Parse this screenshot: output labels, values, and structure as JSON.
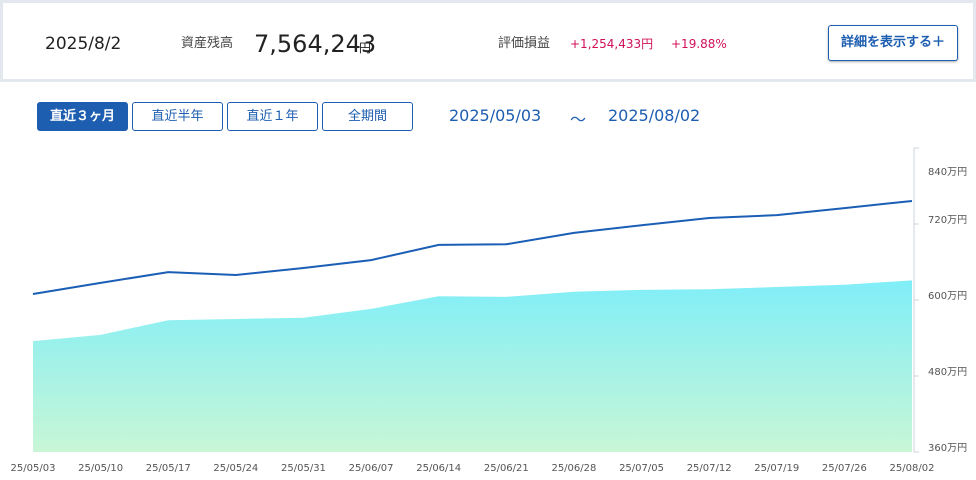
{
  "header": {
    "date": "2025/8/2",
    "balance_label": "資産残高",
    "balance": "7,564,243",
    "balance_unit": "円",
    "pl_label": "評価損益",
    "pl_amount": "+1,254,433円",
    "pl_percent": "+19.88%",
    "detail_button": "詳細を表示する＋"
  },
  "tabs": [
    "直近３ヶ月",
    "直近半年",
    "直近１年",
    "全期間"
  ],
  "active_tab": 0,
  "range": {
    "start": "2025/05/03",
    "separator": "～",
    "end": "2025/08/02"
  },
  "chart_data": {
    "type": "line",
    "categories": [
      "25/05/03",
      "25/05/10",
      "25/05/17",
      "25/05/24",
      "25/05/31",
      "25/06/07",
      "25/06/14",
      "25/06/21",
      "25/06/28",
      "25/07/05",
      "25/07/12",
      "25/07/19",
      "25/07/26",
      "25/08/02"
    ],
    "series": [
      {
        "type": "line",
        "color": "#1b5eb5",
        "values": [
          609.5,
          627,
          644,
          639.5,
          650.5,
          663,
          687,
          688,
          706,
          718,
          729.5,
          734,
          745,
          756.4
        ]
      },
      {
        "type": "area",
        "color": "#80eef8",
        "color2": "#c8f6d6",
        "values": [
          535,
          545,
          568,
          570,
          572,
          586,
          606,
          605,
          613,
          616,
          617,
          620.5,
          624,
          631
        ]
      }
    ],
    "ylim": [
      360,
      840
    ],
    "yticks": [
      {
        "value": 840,
        "label": "840万円"
      },
      {
        "value": 720,
        "label": "720万円"
      },
      {
        "value": 600,
        "label": "600万円"
      },
      {
        "value": 480,
        "label": "480万円"
      },
      {
        "value": 360,
        "label": "360万円"
      }
    ]
  }
}
